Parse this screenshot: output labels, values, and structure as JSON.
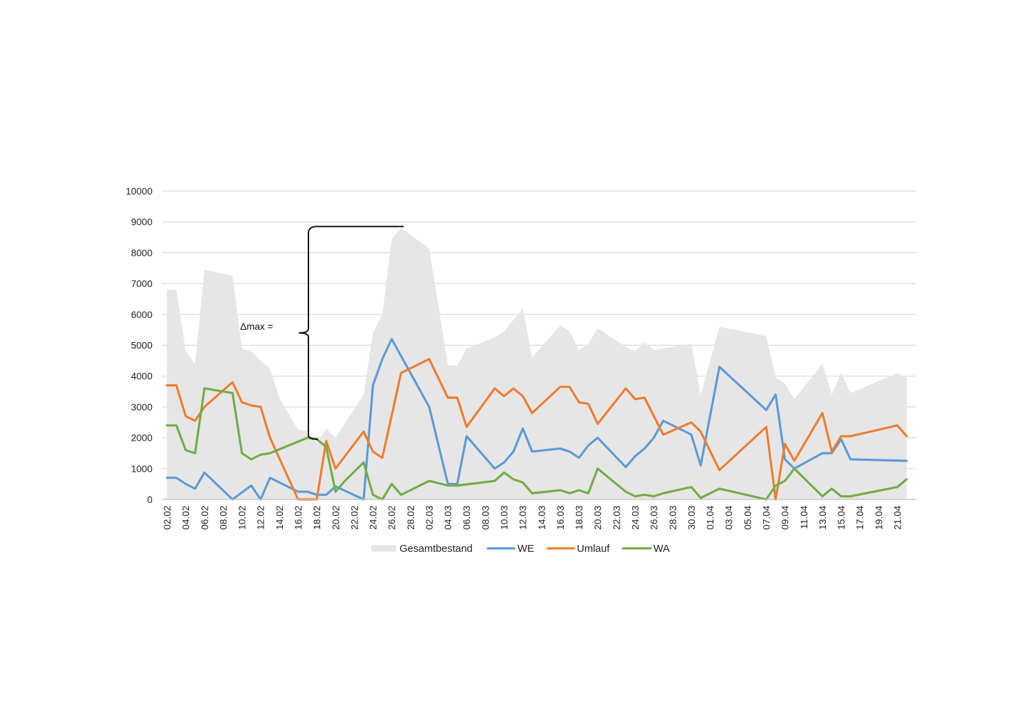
{
  "chart_data": {
    "type": "line",
    "ylim": [
      0,
      10000
    ],
    "yticks": [
      0,
      1000,
      2000,
      3000,
      4000,
      5000,
      6000,
      7000,
      8000,
      9000,
      10000
    ],
    "grid": true,
    "legend_position": "bottom",
    "x_tick_labels": [
      "02.02",
      "04.02",
      "06.02",
      "08.02",
      "10.02",
      "12.02",
      "14.02",
      "16.02",
      "18.02",
      "20.02",
      "22.02",
      "24.02",
      "26.02",
      "28.02",
      "02.03",
      "04.03",
      "06.03",
      "08.03",
      "10.03",
      "12.03",
      "14.03",
      "16.03",
      "18.03",
      "20.03",
      "22.03",
      "24.03",
      "26.03",
      "28.03",
      "30.03",
      "01.04",
      "03.04",
      "05.04",
      "07.04",
      "09.04",
      "11.04",
      "13.04",
      "15.04",
      "17.04",
      "19.04",
      "21.04"
    ],
    "x_points": 81,
    "series": [
      {
        "name": "Gesamtbestand",
        "kind": "area",
        "color": "#e7e6e6",
        "points": [
          [
            0,
            6800
          ],
          [
            1,
            6800
          ],
          [
            2,
            4800
          ],
          [
            3,
            4400
          ],
          [
            4,
            7450
          ],
          [
            7,
            7250
          ],
          [
            8,
            4900
          ],
          [
            9,
            4800
          ],
          [
            10,
            4500
          ],
          [
            11,
            4250
          ],
          [
            12,
            3300
          ],
          [
            14,
            2250
          ],
          [
            15,
            2250
          ],
          [
            16,
            1800
          ],
          [
            17,
            2300
          ],
          [
            18,
            2000
          ],
          [
            21,
            3400
          ],
          [
            22,
            5400
          ],
          [
            23,
            6000
          ],
          [
            24,
            8450
          ],
          [
            25,
            8800
          ],
          [
            28,
            8150
          ],
          [
            30,
            4350
          ],
          [
            31,
            4350
          ],
          [
            32,
            4900
          ],
          [
            35,
            5250
          ],
          [
            36,
            5450
          ],
          [
            38,
            6200
          ],
          [
            39,
            4600
          ],
          [
            42,
            5650
          ],
          [
            43,
            5450
          ],
          [
            44,
            4850
          ],
          [
            45,
            5050
          ],
          [
            46,
            5550
          ],
          [
            49,
            4950
          ],
          [
            50,
            4800
          ],
          [
            51,
            5100
          ],
          [
            52,
            4850
          ],
          [
            55,
            5000
          ],
          [
            56,
            5050
          ],
          [
            57,
            3400
          ],
          [
            59,
            5600
          ],
          [
            64,
            5300
          ],
          [
            65,
            3950
          ],
          [
            66,
            3750
          ],
          [
            67,
            3250
          ],
          [
            70,
            4400
          ],
          [
            71,
            3400
          ],
          [
            72,
            4100
          ],
          [
            73,
            3450
          ],
          [
            78,
            4100
          ],
          [
            79,
            3950
          ]
        ]
      },
      {
        "name": "WE",
        "kind": "line",
        "color": "#5b9bd5",
        "points": [
          [
            0,
            700
          ],
          [
            1,
            700
          ],
          [
            2,
            500
          ],
          [
            3,
            350
          ],
          [
            4,
            870
          ],
          [
            7,
            0
          ],
          [
            9,
            450
          ],
          [
            10,
            0
          ],
          [
            11,
            700
          ],
          [
            14,
            250
          ],
          [
            15,
            250
          ],
          [
            16,
            150
          ],
          [
            17,
            150
          ],
          [
            18,
            420
          ],
          [
            21,
            0
          ],
          [
            22,
            3700
          ],
          [
            23,
            4550
          ],
          [
            24,
            5200
          ],
          [
            28,
            3000
          ],
          [
            30,
            500
          ],
          [
            31,
            500
          ],
          [
            32,
            2050
          ],
          [
            35,
            1000
          ],
          [
            36,
            1200
          ],
          [
            37,
            1550
          ],
          [
            38,
            2300
          ],
          [
            39,
            1550
          ],
          [
            42,
            1650
          ],
          [
            43,
            1550
          ],
          [
            44,
            1350
          ],
          [
            45,
            1750
          ],
          [
            46,
            2000
          ],
          [
            49,
            1050
          ],
          [
            50,
            1400
          ],
          [
            51,
            1650
          ],
          [
            52,
            2000
          ],
          [
            53,
            2550
          ],
          [
            56,
            2100
          ],
          [
            57,
            1100
          ],
          [
            59,
            4300
          ],
          [
            64,
            2900
          ],
          [
            65,
            3400
          ],
          [
            66,
            1300
          ],
          [
            67,
            1000
          ],
          [
            70,
            1500
          ],
          [
            71,
            1500
          ],
          [
            72,
            1950
          ],
          [
            73,
            1300
          ],
          [
            79,
            1250
          ]
        ]
      },
      {
        "name": "Umlauf",
        "kind": "line",
        "color": "#ed7d31",
        "points": [
          [
            0,
            3700
          ],
          [
            1,
            3700
          ],
          [
            2,
            2700
          ],
          [
            3,
            2550
          ],
          [
            4,
            3000
          ],
          [
            7,
            3800
          ],
          [
            8,
            3150
          ],
          [
            9,
            3050
          ],
          [
            10,
            3000
          ],
          [
            11,
            2000
          ],
          [
            14,
            0
          ],
          [
            16,
            0
          ],
          [
            17,
            1900
          ],
          [
            18,
            1000
          ],
          [
            21,
            2200
          ],
          [
            22,
            1550
          ],
          [
            23,
            1350
          ],
          [
            25,
            4100
          ],
          [
            28,
            4550
          ],
          [
            30,
            3300
          ],
          [
            31,
            3300
          ],
          [
            32,
            2350
          ],
          [
            35,
            3600
          ],
          [
            36,
            3350
          ],
          [
            37,
            3600
          ],
          [
            38,
            3350
          ],
          [
            39,
            2800
          ],
          [
            42,
            3650
          ],
          [
            43,
            3650
          ],
          [
            44,
            3150
          ],
          [
            45,
            3100
          ],
          [
            46,
            2450
          ],
          [
            49,
            3600
          ],
          [
            50,
            3250
          ],
          [
            51,
            3300
          ],
          [
            53,
            2100
          ],
          [
            56,
            2500
          ],
          [
            57,
            2200
          ],
          [
            59,
            950
          ],
          [
            64,
            2350
          ],
          [
            65,
            0
          ],
          [
            66,
            1800
          ],
          [
            67,
            1250
          ],
          [
            70,
            2800
          ],
          [
            71,
            1550
          ],
          [
            72,
            2050
          ],
          [
            73,
            2050
          ],
          [
            78,
            2400
          ],
          [
            79,
            2050
          ]
        ]
      },
      {
        "name": "WA",
        "kind": "line",
        "color": "#70ad47",
        "points": [
          [
            0,
            2400
          ],
          [
            1,
            2400
          ],
          [
            2,
            1600
          ],
          [
            3,
            1500
          ],
          [
            4,
            3600
          ],
          [
            7,
            3450
          ],
          [
            8,
            1500
          ],
          [
            9,
            1300
          ],
          [
            10,
            1450
          ],
          [
            11,
            1500
          ],
          [
            15,
            2000
          ],
          [
            16,
            1950
          ],
          [
            17,
            1700
          ],
          [
            18,
            250
          ],
          [
            19,
            600
          ],
          [
            21,
            1200
          ],
          [
            22,
            150
          ],
          [
            23,
            0
          ],
          [
            24,
            500
          ],
          [
            25,
            150
          ],
          [
            28,
            600
          ],
          [
            30,
            450
          ],
          [
            31,
            450
          ],
          [
            35,
            600
          ],
          [
            36,
            870
          ],
          [
            37,
            650
          ],
          [
            38,
            550
          ],
          [
            39,
            200
          ],
          [
            42,
            300
          ],
          [
            43,
            200
          ],
          [
            44,
            300
          ],
          [
            45,
            200
          ],
          [
            46,
            1000
          ],
          [
            49,
            250
          ],
          [
            50,
            100
          ],
          [
            51,
            150
          ],
          [
            52,
            100
          ],
          [
            53,
            200
          ],
          [
            56,
            400
          ],
          [
            57,
            50
          ],
          [
            59,
            350
          ],
          [
            64,
            0
          ],
          [
            65,
            450
          ],
          [
            66,
            600
          ],
          [
            67,
            1000
          ],
          [
            70,
            100
          ],
          [
            71,
            350
          ],
          [
            72,
            100
          ],
          [
            73,
            100
          ],
          [
            78,
            400
          ],
          [
            79,
            650
          ]
        ]
      }
    ],
    "annotation": {
      "text": "Δmax =",
      "from_value": 1950,
      "to_value": 8850
    }
  }
}
